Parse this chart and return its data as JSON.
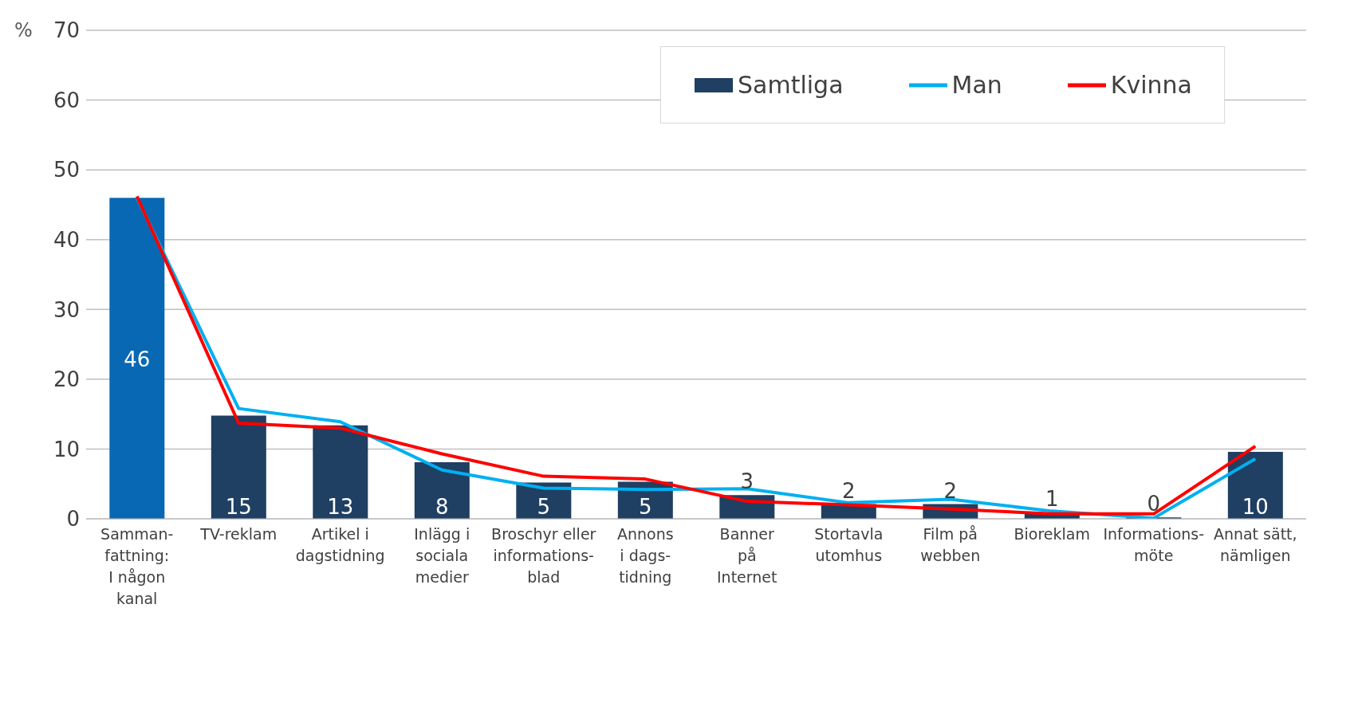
{
  "chart_data": {
    "type": "bar",
    "ylabel": "%",
    "categories": [
      "Samman-\nfattning:\nI någon\nkanal",
      "TV-reklam",
      "Artikel i\ndagstidning",
      "Inlägg i\nsociala\nmedier",
      "Broschyr eller\ninformations-\nblad",
      "Annons\ni dags-\ntidning",
      "Banner\npå\nInternet",
      "Stortavla\nutomhus",
      "Film på\nwebben",
      "Bioreklam",
      "Informations-\nmöte",
      "Annat sätt,\nnämligen"
    ],
    "series": [
      {
        "name": "Samtliga",
        "color": "#1f3f63",
        "colors": [
          "#0868b4",
          "#1f3f63",
          "#1f3f63",
          "#1f3f63",
          "#1f3f63",
          "#1f3f63",
          "#1f3f63",
          "#1f3f63",
          "#1f3f63",
          "#1f3f63",
          "#1f3f63",
          "#1f3f63"
        ],
        "values": [
          46,
          14.8,
          13.4,
          8.1,
          5.2,
          5.3,
          3.4,
          2.1,
          2.1,
          0.9,
          0.2,
          9.6
        ],
        "value_labels": [
          "46",
          "15",
          "13",
          "8",
          "5",
          "5",
          "3",
          "2",
          "2",
          "1",
          "0",
          "10"
        ]
      },
      {
        "name": "Man",
        "type": "line",
        "color": "#00b0f0",
        "values": [
          46,
          15.8,
          13.9,
          7,
          4.4,
          4.2,
          4.3,
          2.3,
          2.8,
          1.1,
          0.1,
          8.6
        ]
      },
      {
        "name": "Kvinna",
        "type": "line",
        "color": "#ff0000",
        "values": [
          46.2,
          13.7,
          13,
          9.3,
          6.1,
          5.7,
          2.5,
          2,
          1.4,
          0.7,
          0.7,
          10.4
        ]
      }
    ],
    "ylim": [
      0,
      70
    ],
    "yticks": [
      0,
      10,
      20,
      30,
      40,
      50,
      60,
      70
    ],
    "grid": "y",
    "legend": "top right",
    "marker": "none",
    "line_style": "solid"
  }
}
